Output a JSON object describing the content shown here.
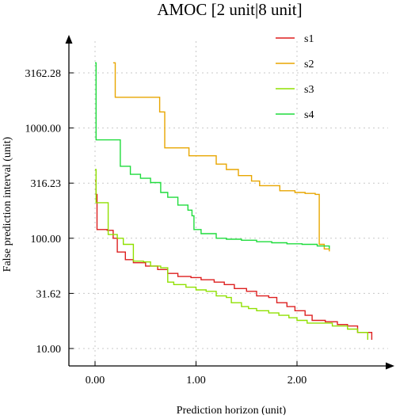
{
  "chart_data": {
    "type": "line",
    "title": "AMOC [2 unit|8 unit]",
    "xlabel": "Prediction horizon (unit)",
    "ylabel": "False prediction interval (unit)",
    "xlim": [
      -0.27,
      2.88
    ],
    "ylim": [
      7.5,
      5500
    ],
    "yscale": "log",
    "grid": true,
    "legend_position": "top-right",
    "x_ticks": [
      0,
      1,
      2
    ],
    "x_tick_labels": [
      "0.00",
      "1.00",
      "2.00"
    ],
    "y_ticks": [
      10,
      31.62,
      100,
      316.23,
      1000,
      3162.28
    ],
    "y_tick_labels": [
      "10.00",
      "31.62",
      "100.00",
      "316.23",
      "1000.00",
      "3162.28"
    ],
    "series": [
      {
        "name": "s1",
        "color": "#dd1f1f",
        "points": [
          [
            0.0,
            330
          ],
          [
            0.01,
            250
          ],
          [
            0.02,
            120
          ],
          [
            0.12,
            118
          ],
          [
            0.18,
            100
          ],
          [
            0.22,
            75
          ],
          [
            0.3,
            64
          ],
          [
            0.38,
            60
          ],
          [
            0.5,
            56
          ],
          [
            0.62,
            52
          ],
          [
            0.72,
            48
          ],
          [
            0.82,
            45
          ],
          [
            0.95,
            44
          ],
          [
            1.05,
            42
          ],
          [
            1.18,
            40
          ],
          [
            1.28,
            38
          ],
          [
            1.38,
            35
          ],
          [
            1.5,
            33
          ],
          [
            1.6,
            30
          ],
          [
            1.72,
            29
          ],
          [
            1.8,
            26
          ],
          [
            1.9,
            24
          ],
          [
            1.98,
            22
          ],
          [
            2.08,
            20
          ],
          [
            2.15,
            18
          ],
          [
            2.28,
            17.5
          ],
          [
            2.4,
            16.5
          ],
          [
            2.5,
            16
          ],
          [
            2.6,
            14
          ],
          [
            2.72,
            14
          ],
          [
            2.74,
            12
          ]
        ]
      },
      {
        "name": "s2",
        "color": "#e8a600",
        "points": [
          [
            0.18,
            3900
          ],
          [
            0.2,
            1900
          ],
          [
            0.63,
            1900
          ],
          [
            0.64,
            1400
          ],
          [
            0.68,
            1400
          ],
          [
            0.69,
            660
          ],
          [
            0.92,
            660
          ],
          [
            0.93,
            560
          ],
          [
            1.15,
            560
          ],
          [
            1.2,
            470
          ],
          [
            1.3,
            420
          ],
          [
            1.42,
            370
          ],
          [
            1.55,
            330
          ],
          [
            1.62,
            330
          ],
          [
            1.63,
            300
          ],
          [
            1.82,
            300
          ],
          [
            1.83,
            270
          ],
          [
            1.98,
            260
          ],
          [
            2.08,
            255
          ],
          [
            2.18,
            250
          ],
          [
            2.22,
            88
          ],
          [
            2.27,
            80
          ],
          [
            2.32,
            76
          ]
        ]
      },
      {
        "name": "s3",
        "color": "#8fe000",
        "points": [
          [
            0.0,
            420
          ],
          [
            0.01,
            210
          ],
          [
            0.12,
            210
          ],
          [
            0.13,
            108
          ],
          [
            0.22,
            100
          ],
          [
            0.28,
            88
          ],
          [
            0.38,
            62
          ],
          [
            0.48,
            61
          ],
          [
            0.55,
            56
          ],
          [
            0.65,
            54
          ],
          [
            0.72,
            40
          ],
          [
            0.78,
            38
          ],
          [
            0.9,
            36
          ],
          [
            1.0,
            34
          ],
          [
            1.1,
            33
          ],
          [
            1.2,
            30
          ],
          [
            1.3,
            29
          ],
          [
            1.35,
            26
          ],
          [
            1.45,
            24
          ],
          [
            1.52,
            23
          ],
          [
            1.6,
            22
          ],
          [
            1.72,
            21
          ],
          [
            1.82,
            20
          ],
          [
            1.92,
            19
          ],
          [
            2.0,
            18
          ],
          [
            2.1,
            17
          ],
          [
            2.22,
            17
          ],
          [
            2.35,
            16
          ],
          [
            2.5,
            15
          ],
          [
            2.6,
            14
          ],
          [
            2.7,
            12
          ]
        ]
      },
      {
        "name": "s4",
        "color": "#1fdc3c",
        "points": [
          [
            0.0,
            3900
          ],
          [
            0.01,
            780
          ],
          [
            0.23,
            780
          ],
          [
            0.25,
            450
          ],
          [
            0.35,
            380
          ],
          [
            0.45,
            350
          ],
          [
            0.55,
            320
          ],
          [
            0.65,
            260
          ],
          [
            0.72,
            235
          ],
          [
            0.82,
            200
          ],
          [
            0.92,
            180
          ],
          [
            0.96,
            160
          ],
          [
            0.98,
            120
          ],
          [
            1.05,
            110
          ],
          [
            1.2,
            100
          ],
          [
            1.3,
            98
          ],
          [
            1.45,
            96
          ],
          [
            1.6,
            93
          ],
          [
            1.75,
            91
          ],
          [
            1.9,
            89
          ],
          [
            2.05,
            88
          ],
          [
            2.2,
            85
          ],
          [
            2.32,
            80
          ]
        ]
      }
    ]
  }
}
